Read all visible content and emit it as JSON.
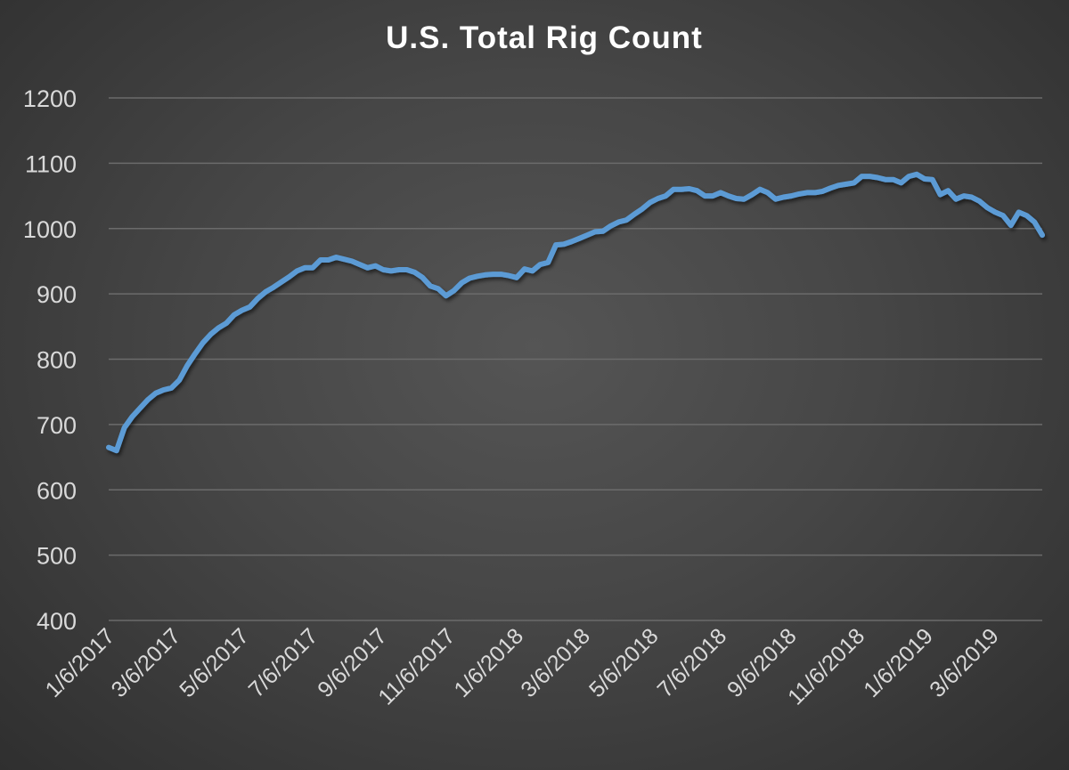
{
  "chart_data": {
    "type": "line",
    "title": "U.S. Total Rig Count",
    "xlabel": "",
    "ylabel": "",
    "ylim": [
      400,
      1200
    ],
    "yticks": [
      400,
      500,
      600,
      700,
      800,
      900,
      1000,
      1100,
      1200
    ],
    "grid": true,
    "legend": "none",
    "x_unit": "weeks since 1/6/2017",
    "xticks": [
      {
        "week": 0,
        "label": "1/6/2017"
      },
      {
        "week": 8.4,
        "label": "3/6/2017"
      },
      {
        "week": 17.1,
        "label": "5/6/2017"
      },
      {
        "week": 25.9,
        "label": "7/6/2017"
      },
      {
        "week": 34.7,
        "label": "9/6/2017"
      },
      {
        "week": 43.4,
        "label": "11/6/2017"
      },
      {
        "week": 52.1,
        "label": "1/6/2018"
      },
      {
        "week": 60.6,
        "label": "3/6/2018"
      },
      {
        "week": 69.3,
        "label": "5/6/2018"
      },
      {
        "week": 78.0,
        "label": "7/6/2018"
      },
      {
        "week": 86.9,
        "label": "9/6/2018"
      },
      {
        "week": 95.6,
        "label": "11/6/2018"
      },
      {
        "week": 104.3,
        "label": "1/6/2019"
      },
      {
        "week": 112.7,
        "label": "3/6/2019"
      }
    ],
    "series": [
      {
        "name": "U.S. Total Rig Count",
        "color": "#5b9bd5",
        "values": [
          665,
          660,
          695,
          712,
          725,
          738,
          748,
          753,
          756,
          768,
          790,
          808,
          825,
          838,
          848,
          855,
          868,
          875,
          880,
          893,
          903,
          910,
          918,
          926,
          935,
          940,
          940,
          952,
          952,
          956,
          953,
          950,
          945,
          940,
          943,
          937,
          935,
          937,
          937,
          933,
          925,
          912,
          908,
          897,
          905,
          917,
          924,
          927,
          929,
          930,
          930,
          928,
          925,
          938,
          935,
          945,
          948,
          975,
          976,
          980,
          985,
          990,
          995,
          996,
          1004,
          1010,
          1013,
          1022,
          1030,
          1040,
          1046,
          1050,
          1060,
          1060,
          1061,
          1058,
          1050,
          1050,
          1055,
          1050,
          1046,
          1045,
          1052,
          1060,
          1055,
          1045,
          1048,
          1050,
          1053,
          1055,
          1055,
          1057,
          1062,
          1066,
          1068,
          1070,
          1080,
          1080,
          1078,
          1075,
          1075,
          1070,
          1080,
          1083,
          1076,
          1075,
          1052,
          1058,
          1045,
          1050,
          1048,
          1042,
          1032,
          1025,
          1020,
          1005,
          1025,
          1020,
          1010,
          990
        ]
      }
    ]
  }
}
